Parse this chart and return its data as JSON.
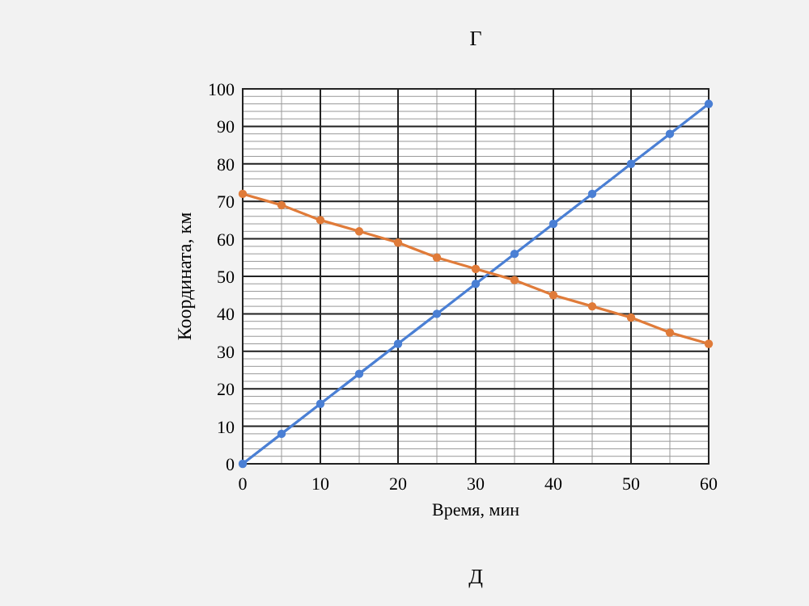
{
  "chart_data": {
    "type": "line",
    "title": "Г",
    "xlabel": "Время, мин",
    "ylabel": "Координата, км",
    "x": [
      0,
      5,
      10,
      15,
      20,
      25,
      30,
      35,
      40,
      45,
      50,
      55,
      60
    ],
    "series": [
      {
        "color": "#4a7fd4",
        "values": [
          0,
          8,
          16,
          24,
          32,
          40,
          48,
          56,
          64,
          72,
          80,
          88,
          96
        ]
      },
      {
        "color": "#e07b39",
        "values": [
          72,
          69,
          65,
          62,
          59,
          55,
          52,
          49,
          45,
          42,
          39,
          35,
          32
        ]
      }
    ],
    "xlim": [
      0,
      60
    ],
    "xticks": [
      0,
      10,
      20,
      30,
      40,
      50,
      60
    ],
    "ylim": [
      0,
      100
    ],
    "yticks": [
      0,
      10,
      20,
      30,
      40,
      50,
      60,
      70,
      80,
      90,
      100
    ],
    "grid": true,
    "marker": "circle",
    "line_style": "solid",
    "annotations": [
      "Д"
    ]
  }
}
